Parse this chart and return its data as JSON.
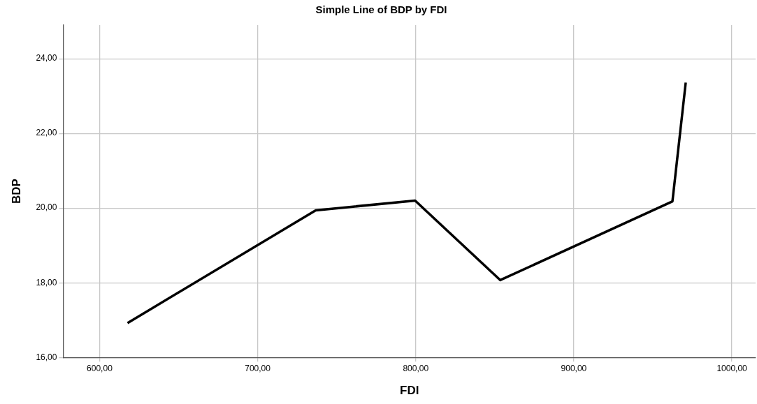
{
  "chart_data": {
    "type": "line",
    "title": "Simple Line of BDP by FDI",
    "xlabel": "FDI",
    "ylabel": "BDP",
    "x": [
      617.7,
      736.7,
      799.6,
      853.5,
      962.4,
      970.8
    ],
    "series": [
      {
        "color": "#000000",
        "values": [
          16.92,
          19.94,
          20.2,
          18.07,
          20.18,
          23.36
        ]
      }
    ],
    "xlim": [
      577,
      1015
    ],
    "ylim": [
      16,
      24.9
    ],
    "xticks": [
      {
        "value": 600,
        "label": "600,00"
      },
      {
        "value": 700,
        "label": "700,00"
      },
      {
        "value": 800,
        "label": "800,00"
      },
      {
        "value": 900,
        "label": "900,00"
      },
      {
        "value": 1000,
        "label": "1000,00"
      }
    ],
    "yticks": [
      {
        "value": 16,
        "label": "16,00"
      },
      {
        "value": 18,
        "label": "18,00"
      },
      {
        "value": 20,
        "label": "20,00"
      },
      {
        "value": 22,
        "label": "22,00"
      },
      {
        "value": 24,
        "label": "24,00"
      }
    ],
    "grid": true,
    "legend": false,
    "marker": "none",
    "line_style": "solid"
  }
}
